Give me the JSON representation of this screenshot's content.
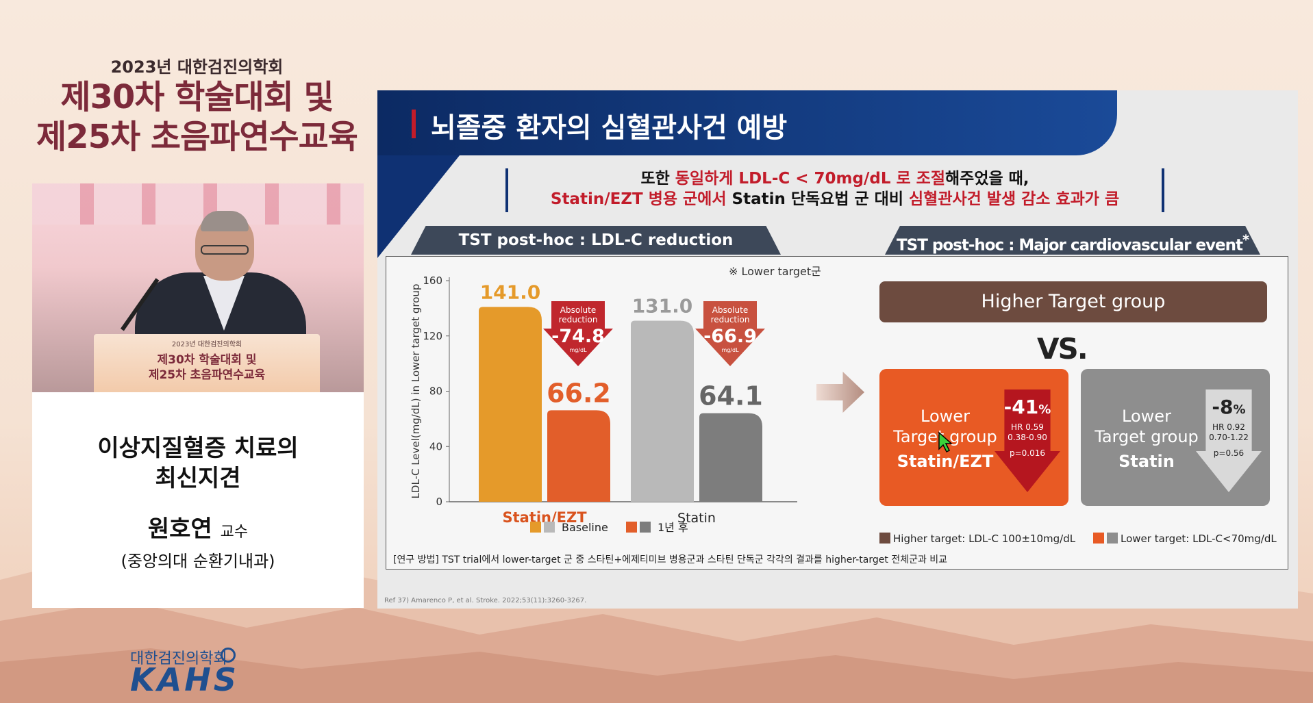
{
  "event": {
    "year_line": "2023년 대한검진의학회",
    "line1": "제30차 학술대회 및",
    "line2": "제25차 초음파연수교육"
  },
  "lectern": {
    "small": "2023년 대한검진의학회",
    "line1": "제30차 학술대회 및",
    "line2": "제25차 초음파연수교육"
  },
  "talk": {
    "title_line1": "이상지질혈증 치료의",
    "title_line2": "최신지견",
    "speaker": "원호연",
    "role": "교수",
    "affiliation": "(중앙의대 순환기내과)"
  },
  "logo": {
    "kr": "대한검진의학회",
    "en": "KAHS"
  },
  "slide": {
    "title": "뇌졸중 환자의 심혈관사건 예방",
    "subtitle": {
      "l1_a": "또한 ",
      "l1_b": "동일하게 LDL-C < 70mg/dL 로 조절",
      "l1_c": "해주었을 때,",
      "l2_a": "Statin/EZT 병용 군에서",
      "l2_b": " Statin 단독요법 군 대비 ",
      "l2_c": "심혈관사건 발생 감소 효과가 큼"
    },
    "tab_left": "TST post-hoc : LDL-C reduction",
    "tab_right": "TST post-hoc : Major cardiovascular event",
    "tab_right_sup": "*",
    "tab_right_unit": "(%)",
    "lower_target_note": "※ Lower target군",
    "method_note": "[연구 방법] TST trial에서 lower-target 군 중 스타틴+에제티미브 병용군과 스타틴 단독군 각각의 결과를 higher-target 전체군과 비교",
    "reference": "Ref 37) Amarenco P, et al. Stroke. 2022;53(11):3260-3267."
  },
  "chart_data": {
    "type": "bar",
    "categories": [
      "Statin/EZT",
      "Statin"
    ],
    "series": [
      {
        "name": "Baseline",
        "values": [
          141.0,
          131.0
        ]
      },
      {
        "name": "1년 후",
        "values": [
          66.2,
          64.1
        ]
      }
    ],
    "value_labels": {
      "Statin/EZT": [
        "141.0",
        "66.2"
      ],
      "Statin": [
        "131.0",
        "64.1"
      ]
    },
    "reductions": [
      {
        "category": "Statin/EZT",
        "label": "Absolute reduction",
        "value": "-74.8",
        "unit": "mg/dL"
      },
      {
        "category": "Statin",
        "label": "Absolute reduction",
        "value": "-66.9",
        "unit": "mg/dL"
      }
    ],
    "ylabel": "LDL-C Level(mg/dL) in Lower target group",
    "yticks": [
      "0",
      "40",
      "80",
      "120",
      "160"
    ],
    "ylim": [
      0,
      160
    ],
    "colors": {
      "Statin/EZT": [
        "#e59a2a",
        "#e25e2a"
      ],
      "Statin": [
        "#b9b9b9",
        "#7d7d7d"
      ],
      "legend_baseline": [
        "#e59a2a",
        "#b9b9b9"
      ],
      "legend_after": [
        "#e25e2a",
        "#7d7d7d"
      ],
      "statin_ezt_label": "#d9531e",
      "reduction_arrow": "#c0272d",
      "reduction_arrow_2": "#c8513f"
    },
    "grid": true,
    "legend": "bottom"
  },
  "mace": {
    "higher_group": "Higher Target group",
    "vs": "VS.",
    "groups": [
      {
        "line1": "Lower",
        "line2": "Target group",
        "drug": "Statin/EZT",
        "pct": "-41",
        "pct_unit": "%",
        "hr": "HR 0.59",
        "ci": "0.38-0.90",
        "p": "p=0.016",
        "color": "#e85a24"
      },
      {
        "line1": "Lower",
        "line2": "Target group",
        "drug": "Statin",
        "pct": "-8",
        "pct_unit": "%",
        "hr": "HR 0.92",
        "ci": "0.70-1.22",
        "p": "p=0.56",
        "color": "#8e8e8e"
      }
    ],
    "legend_higher": "Higher target: LDL-C 100±10mg/dL",
    "legend_lower": "Lower target: LDL-C<70mg/dL",
    "legend_higher_color": "#6d4b3f",
    "legend_lower_colors": [
      "#e85a24",
      "#8e8e8e"
    ]
  }
}
